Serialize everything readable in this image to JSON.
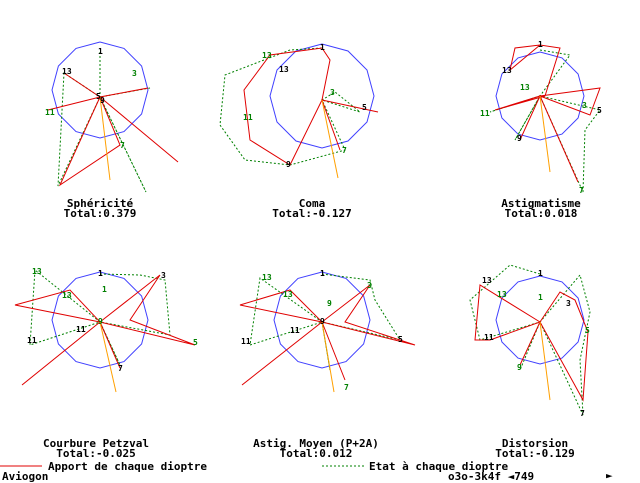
{
  "colors": {
    "circle": "#4040ff",
    "contribution": "#e00000",
    "state": "#008000",
    "total": "#ffa000",
    "marker_red": "#800000",
    "marker_green": "#008000"
  },
  "panels": [
    {
      "id": "sphericite",
      "title": "Sphéricité",
      "total": "Total:0.379"
    },
    {
      "id": "coma",
      "title": "Coma",
      "total": "Total:-0.127"
    },
    {
      "id": "astigmatisme",
      "title": "Astigmatisme",
      "total": "Total:0.018"
    },
    {
      "id": "courbure",
      "title": "Courbure Petzval",
      "total": "Total:-0.025"
    },
    {
      "id": "astig-moyen",
      "title": "Astig. Moyen (P+2A)",
      "total": "Total:0.012"
    },
    {
      "id": "distorsion",
      "title": "Distorsion",
      "total": "Total:-0.129"
    }
  ],
  "chart_data": {
    "type": "line",
    "panels": [
      {
        "name": "Sphéricité",
        "marker_labels": [
          "1",
          "3",
          "5",
          "7",
          "9",
          "11",
          "13"
        ],
        "contribution_labels": [
          "1",
          "3",
          "5",
          "7",
          "9",
          "11"
        ],
        "state_labels": [
          "1",
          "3",
          "5",
          "7",
          "9",
          "11",
          "13"
        ]
      },
      {
        "name": "Coma",
        "marker_labels": [
          "1",
          "3",
          "5",
          "7",
          "9",
          "11",
          "13"
        ]
      },
      {
        "name": "Astigmatisme",
        "marker_labels": [
          "1",
          "3",
          "5",
          "7",
          "9",
          "11",
          "13"
        ]
      },
      {
        "name": "Courbure Petzval",
        "marker_labels": [
          "1",
          "3",
          "5",
          "7",
          "9",
          "11",
          "13"
        ]
      },
      {
        "name": "Astig. Moyen (P+2A)",
        "marker_labels": [
          "1",
          "3",
          "5",
          "7",
          "9",
          "11",
          "13"
        ]
      },
      {
        "name": "Distorsion",
        "marker_labels": [
          "1",
          "3",
          "5",
          "7",
          "9",
          "11",
          "13"
        ]
      }
    ]
  },
  "legend": {
    "contribution": "Apport de chaque dioptre",
    "state": "Etat à chaque dioptre"
  },
  "status": {
    "app_name": "Aviogon",
    "code": "o3o-3k4f ◄749",
    "arrow": "►"
  }
}
